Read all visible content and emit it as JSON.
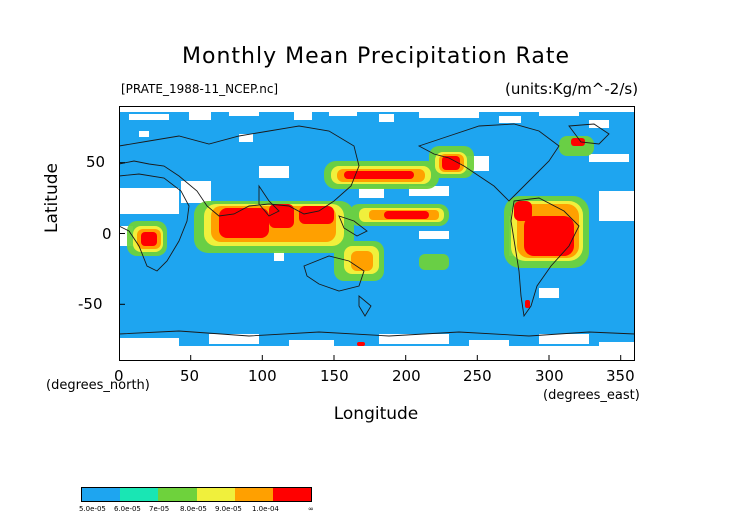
{
  "title": "Monthly Mean Precipitation Rate",
  "filename": "[PRATE_1988-11_NCEP.nc]",
  "units": "(units:Kg/m^-2/s)",
  "x_axis": {
    "label": "Longitude",
    "unit_note": "(degrees_east)",
    "ticks": [
      "0",
      "50",
      "100",
      "150",
      "200",
      "250",
      "300",
      "350"
    ]
  },
  "y_axis": {
    "label": "Latitude",
    "unit_note": "(degrees_north)",
    "ticks": [
      "50",
      "0",
      "-50"
    ]
  },
  "colors": {
    "ocean_base": "#1ea5f0",
    "missing": "#ffffff",
    "outline": "#1a1a1a"
  },
  "chart_data": {
    "type": "heatmap",
    "title": "Monthly Mean Precipitation Rate",
    "xlabel": "Longitude",
    "ylabel": "Latitude",
    "xlim": [
      0,
      360
    ],
    "ylim": [
      -90,
      90
    ],
    "x_ticks": [
      0,
      50,
      100,
      150,
      200,
      250,
      300,
      350
    ],
    "y_ticks": [
      -50,
      0,
      50
    ],
    "colorbar": {
      "labels": [
        "5.0e-05",
        "6.0e-05",
        "7e-05",
        "8.0e-05",
        "9.0e-05",
        "1.0e-04",
        "∞"
      ],
      "colors": [
        "#1ea5f0",
        "#19e6b4",
        "#6ed23c",
        "#f0f03c",
        "#ffa000",
        "#ff0000"
      ]
    },
    "high_precip_regions": [
      {
        "lon": [
          70,
          140
        ],
        "lat": [
          0,
          20
        ],
        "level": 5
      },
      {
        "lon": [
          140,
          210
        ],
        "lat": [
          3,
          12
        ],
        "level": 5
      },
      {
        "lon": [
          275,
          320
        ],
        "lat": [
          -20,
          12
        ],
        "level": 5
      },
      {
        "lon": [
          15,
          35
        ],
        "lat": [
          -10,
          5
        ],
        "level": 5
      },
      {
        "lon": [
          150,
          220
        ],
        "lat": [
          28,
          42
        ],
        "level": 5
      },
      {
        "lon": [
          222,
          240
        ],
        "lat": [
          45,
          60
        ],
        "level": 5
      },
      {
        "lon": [
          320,
          335
        ],
        "lat": [
          50,
          58
        ],
        "level": 5
      },
      {
        "lon": [
          160,
          185
        ],
        "lat": [
          -25,
          -10
        ],
        "level": 4
      },
      {
        "lon": [
          280,
          290
        ],
        "lat": [
          -55,
          -45
        ],
        "level": 5
      },
      {
        "lon": [
          225,
          240
        ],
        "lat": [
          -25,
          -18
        ],
        "level": 3
      }
    ]
  }
}
